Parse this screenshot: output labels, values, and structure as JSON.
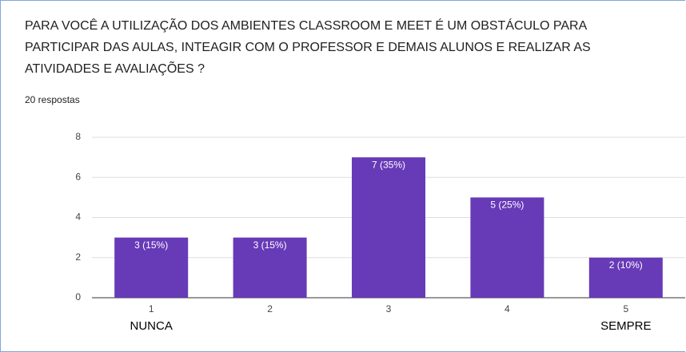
{
  "chart_data": {
    "type": "bar",
    "title": [
      "PARA VOCÊ A UTILIZAÇÃO DOS AMBIENTES CLASSROOM E MEET É UM OBSTÁCULO PARA",
      "PARTICIPAR DAS AULAS, INTEAGIR COM O PROFESSOR E DEMAIS ALUNOS E REALIZAR AS",
      "ATIVIDADES E AVALIAÇÕES ?"
    ],
    "subtitle": "20 respostas",
    "categories": [
      "1",
      "2",
      "3",
      "4",
      "5"
    ],
    "values": [
      3,
      3,
      7,
      5,
      2
    ],
    "value_labels": [
      "3 (15%)",
      "3 (15%)",
      "7 (35%)",
      "5 (25%)",
      "2 (10%)"
    ],
    "annotations": [
      {
        "text": "NUNCA",
        "category": "1"
      },
      {
        "text": "SEMPRE",
        "category": "5"
      }
    ],
    "color": "#673ab7",
    "ylim": [
      0,
      8
    ],
    "yticks": [
      0,
      2,
      4,
      6,
      8
    ],
    "grid": true
  }
}
